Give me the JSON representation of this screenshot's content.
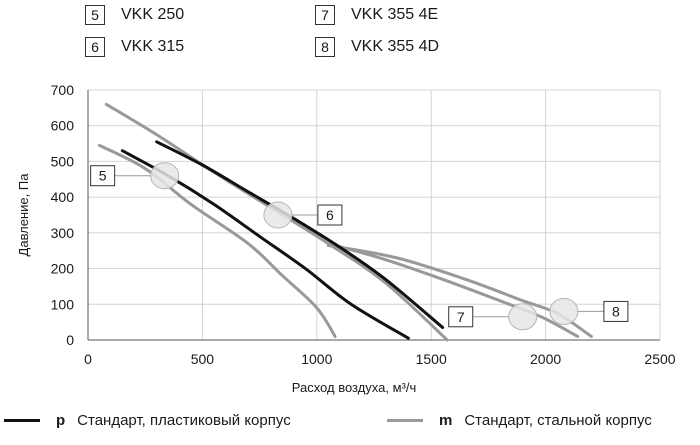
{
  "chart_data": {
    "type": "line",
    "xlabel": "Расход воздуха, м³/ч",
    "ylabel": "Давление, Па",
    "xlim": [
      0,
      2500
    ],
    "ylim": [
      0,
      700
    ],
    "x_ticks": [
      0,
      500,
      1000,
      1500,
      2000,
      2500
    ],
    "y_ticks": [
      0,
      100,
      200,
      300,
      400,
      500,
      600,
      700
    ],
    "grid": true,
    "models": [
      {
        "id": "5",
        "name": "VKK 250"
      },
      {
        "id": "6",
        "name": "VKK 315"
      },
      {
        "id": "7",
        "name": "VKK 355 4E"
      },
      {
        "id": "8",
        "name": "VKK 355 4D"
      }
    ],
    "casings": [
      {
        "code": "p",
        "label": "Стандарт, пластиковый корпус",
        "color": "#111111"
      },
      {
        "code": "m",
        "label": "Стандарт, стальной корпус",
        "color": "#999999"
      }
    ],
    "series": [
      {
        "model": "5",
        "casing": "p",
        "points": [
          [
            150,
            530
          ],
          [
            350,
            460
          ],
          [
            550,
            380
          ],
          [
            750,
            290
          ],
          [
            950,
            200
          ],
          [
            1150,
            100
          ],
          [
            1400,
            5
          ]
        ]
      },
      {
        "model": "5",
        "casing": "m",
        "points": [
          [
            50,
            545
          ],
          [
            250,
            480
          ],
          [
            450,
            380
          ],
          [
            700,
            270
          ],
          [
            850,
            180
          ],
          [
            1000,
            90
          ],
          [
            1080,
            10
          ]
        ]
      },
      {
        "model": "6",
        "casing": "p",
        "points": [
          [
            300,
            555
          ],
          [
            500,
            490
          ],
          [
            700,
            415
          ],
          [
            900,
            340
          ],
          [
            1100,
            260
          ],
          [
            1300,
            170
          ],
          [
            1550,
            35
          ]
        ]
      },
      {
        "model": "6",
        "casing": "m",
        "points": [
          [
            80,
            660
          ],
          [
            300,
            575
          ],
          [
            550,
            470
          ],
          [
            800,
            370
          ],
          [
            1050,
            270
          ],
          [
            1300,
            160
          ],
          [
            1570,
            0
          ]
        ]
      },
      {
        "model": "7",
        "casing": "m",
        "points": [
          [
            1050,
            270
          ],
          [
            1300,
            225
          ],
          [
            1550,
            170
          ],
          [
            1800,
            110
          ],
          [
            1980,
            65
          ],
          [
            2140,
            10
          ]
        ]
      },
      {
        "model": "8",
        "casing": "m",
        "points": [
          [
            1050,
            265
          ],
          [
            1350,
            230
          ],
          [
            1650,
            170
          ],
          [
            1900,
            110
          ],
          [
            2050,
            75
          ],
          [
            2200,
            10
          ]
        ]
      }
    ],
    "annotations": [
      {
        "label": "5",
        "x": 335,
        "y": 460
      },
      {
        "label": "6",
        "x": 830,
        "y": 350
      },
      {
        "label": "7",
        "x": 1900,
        "y": 65
      },
      {
        "label": "8",
        "x": 2080,
        "y": 80
      }
    ]
  }
}
